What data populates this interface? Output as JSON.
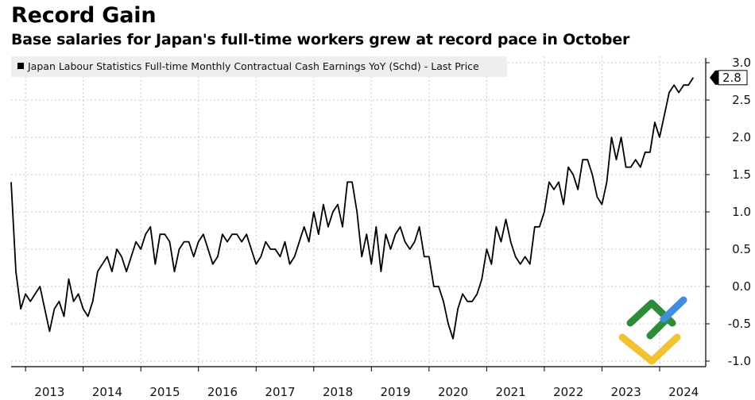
{
  "header": {
    "title": "Record Gain",
    "subtitle": "Base salaries for Japan's full-time workers grew at record pace in October"
  },
  "chart_data": {
    "type": "line",
    "title": "Record Gain",
    "subtitle": "Base salaries for Japan's full-time workers grew at record pace in October",
    "legend": "Japan Labour Statistics Full-time Monthly Contractual Cash Earnings YoY (Schd) - Last Price",
    "legend_position": "top-left",
    "last_value_label": "2.8",
    "y_axis_side": "right",
    "ylim": [
      -1.0,
      3.0
    ],
    "y_ticks": [
      "3.0",
      "2.5",
      "2.0",
      "1.5",
      "1.0",
      "0.5",
      "0.0",
      "-0.5",
      "-1.0"
    ],
    "y_tick_values": [
      3.0,
      2.5,
      2.0,
      1.5,
      1.0,
      0.5,
      0.0,
      -0.5,
      -1.0
    ],
    "x_ticks": [
      "2013",
      "2014",
      "2015",
      "2016",
      "2017",
      "2018",
      "2019",
      "2020",
      "2021",
      "2022",
      "2023",
      "2024"
    ],
    "x_start": 2012.75,
    "x_end": 2024.8,
    "series": [
      {
        "name": "Japan Labour Statistics Full-time Monthly Contractual Cash Earnings YoY (Schd)",
        "color": "#000000",
        "x_start": 2012.75,
        "x_step": 0.08333,
        "values": [
          1.4,
          0.2,
          -0.3,
          -0.1,
          -0.2,
          -0.1,
          0.0,
          -0.3,
          -0.6,
          -0.3,
          -0.2,
          -0.4,
          0.1,
          -0.2,
          -0.1,
          -0.3,
          -0.4,
          -0.2,
          0.2,
          0.3,
          0.4,
          0.2,
          0.5,
          0.4,
          0.2,
          0.4,
          0.6,
          0.5,
          0.7,
          0.8,
          0.3,
          0.7,
          0.7,
          0.6,
          0.2,
          0.5,
          0.6,
          0.6,
          0.4,
          0.6,
          0.7,
          0.5,
          0.3,
          0.4,
          0.7,
          0.6,
          0.7,
          0.7,
          0.6,
          0.7,
          0.5,
          0.3,
          0.4,
          0.6,
          0.5,
          0.5,
          0.4,
          0.6,
          0.3,
          0.4,
          0.6,
          0.8,
          0.6,
          1.0,
          0.7,
          1.1,
          0.8,
          1.0,
          1.1,
          0.8,
          1.4,
          1.4,
          1.0,
          0.4,
          0.7,
          0.3,
          0.8,
          0.2,
          0.7,
          0.5,
          0.7,
          0.8,
          0.6,
          0.5,
          0.6,
          0.8,
          0.4,
          0.4,
          0.0,
          0.0,
          -0.2,
          -0.5,
          -0.7,
          -0.3,
          -0.1,
          -0.2,
          -0.2,
          -0.1,
          0.1,
          0.5,
          0.3,
          0.8,
          0.6,
          0.9,
          0.6,
          0.4,
          0.3,
          0.4,
          0.3,
          0.8,
          0.8,
          1.0,
          1.4,
          1.3,
          1.4,
          1.1,
          1.6,
          1.5,
          1.3,
          1.7,
          1.7,
          1.5,
          1.2,
          1.1,
          1.4,
          2.0,
          1.7,
          2.0,
          1.6,
          1.6,
          1.7,
          1.6,
          1.8,
          1.8,
          2.2,
          2.0,
          2.3,
          2.6,
          2.7,
          2.6,
          2.7,
          2.7,
          2.8
        ]
      }
    ]
  },
  "logo": {
    "name": "LiteFinance-style watermark",
    "colors": {
      "green": "#2e8b3a",
      "blue": "#3f8fde",
      "yellow": "#f2c230"
    }
  }
}
